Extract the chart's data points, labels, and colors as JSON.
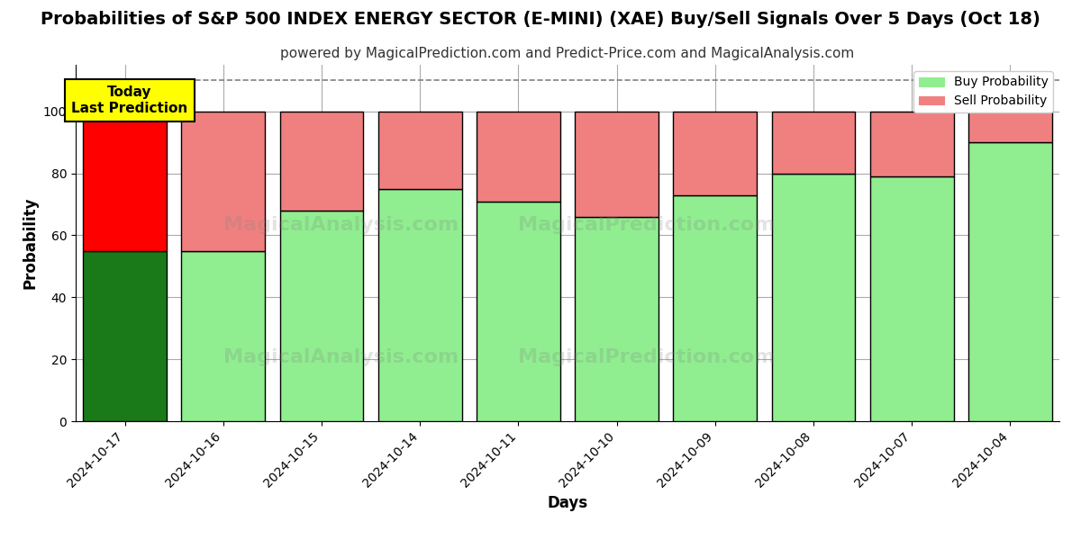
{
  "title": "Probabilities of S&P 500 INDEX ENERGY SECTOR (E-MINI) (XAE) Buy/Sell Signals Over 5 Days (Oct 18)",
  "subtitle": "powered by MagicalPrediction.com and Predict-Price.com and MagicalAnalysis.com",
  "xlabel": "Days",
  "ylabel": "Probability",
  "dates": [
    "2024-10-17",
    "2024-10-16",
    "2024-10-15",
    "2024-10-14",
    "2024-10-11",
    "2024-10-10",
    "2024-10-09",
    "2024-10-08",
    "2024-10-07",
    "2024-10-04"
  ],
  "buy_values": [
    55,
    55,
    68,
    75,
    71,
    66,
    73,
    80,
    79,
    90
  ],
  "sell_values": [
    45,
    45,
    32,
    25,
    29,
    34,
    27,
    20,
    21,
    10
  ],
  "today_buy_color": "#1a7a1a",
  "today_sell_color": "#ff0000",
  "regular_buy_color": "#90ee90",
  "regular_sell_color": "#f08080",
  "bar_edge_color": "#000000",
  "ylim": [
    0,
    115
  ],
  "yticks": [
    0,
    20,
    40,
    60,
    80,
    100
  ],
  "dashed_line_y": 110,
  "legend_buy_label": "Buy Probability",
  "legend_sell_label": "Sell Probability",
  "today_annotation": "Today\nLast Prediction",
  "watermark1": "MagicalAnalysis.com",
  "watermark2": "MagicalPrediction.com",
  "background_color": "#ffffff",
  "grid_color": "#aaaaaa",
  "title_fontsize": 14,
  "subtitle_fontsize": 11
}
